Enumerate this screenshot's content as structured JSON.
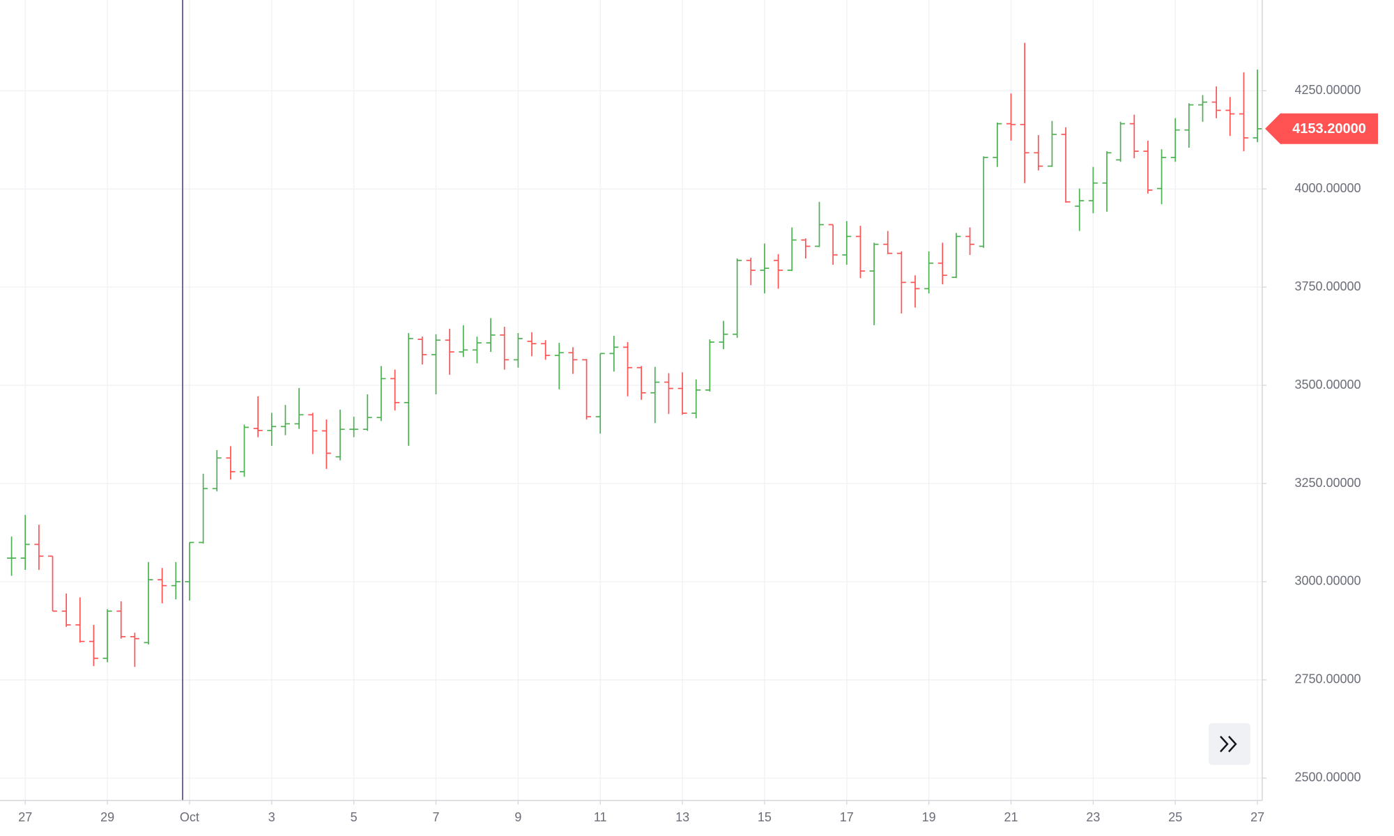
{
  "chart_data": {
    "type": "ohlc",
    "categories": [
      null,
      "27",
      null,
      null,
      null,
      null,
      null,
      "29",
      null,
      null,
      null,
      null,
      null,
      "Oct",
      null,
      null,
      null,
      null,
      null,
      "3",
      null,
      null,
      null,
      null,
      null,
      "5",
      null,
      null,
      null,
      null,
      null,
      "7",
      null,
      null,
      null,
      null,
      null,
      "9",
      null,
      null,
      null,
      null,
      null,
      "11",
      null,
      null,
      null,
      null,
      null,
      "13",
      null,
      null,
      null,
      null,
      null,
      "15",
      null,
      null,
      null,
      null,
      null,
      "17",
      null,
      null,
      null,
      null,
      null,
      "19",
      null,
      null,
      null,
      null,
      null,
      "21",
      null,
      null,
      null,
      null,
      null,
      "23",
      null,
      null,
      null,
      null,
      null,
      "25",
      null,
      null,
      null,
      null,
      null,
      "27"
    ],
    "open": [
      3060,
      3060,
      3095,
      3065,
      2925,
      2890,
      2848,
      2805,
      2925,
      2860,
      2845,
      3005,
      2990,
      3000,
      3100,
      3237,
      3315,
      3280,
      3390,
      3385,
      3395,
      3402,
      3425,
      3384,
      3318,
      3388,
      3388,
      3418,
      3517,
      3456,
      3617,
      3578,
      3615,
      3585,
      3590,
      3608,
      3628,
      3565,
      3612,
      3606,
      3576,
      3583,
      3565,
      3420,
      3581,
      3597,
      3545,
      3481,
      3508,
      3492,
      3429,
      3488,
      3610,
      3630,
      3818,
      3793,
      3818,
      3793,
      3870,
      3854,
      3909,
      3832,
      3879,
      3791,
      3859,
      3836,
      3762,
      3746,
      3811,
      3775,
      3879,
      3854,
      4080,
      4166,
      4164,
      4092,
      4058,
      4139,
      3956,
      3970,
      4015,
      4074,
      4166,
      4096,
      4001,
      4080,
      4150,
      4214,
      4221,
      4200,
      4191,
      4130
    ],
    "high": [
      3115,
      3170,
      3145,
      3065,
      2970,
      2960,
      2890,
      2930,
      2950,
      2870,
      3050,
      3035,
      3050,
      3100,
      3275,
      3335,
      3345,
      3400,
      3472,
      3430,
      3450,
      3493,
      3430,
      3413,
      3438,
      3420,
      3477,
      3549,
      3540,
      3633,
      3624,
      3630,
      3644,
      3653,
      3624,
      3671,
      3649,
      3633,
      3635,
      3615,
      3608,
      3597,
      3567,
      3581,
      3626,
      3610,
      3549,
      3547,
      3531,
      3533,
      3515,
      3617,
      3664,
      3823,
      3825,
      3861,
      3834,
      3902,
      3874,
      3967,
      3909,
      3918,
      3906,
      3863,
      3893,
      3841,
      3780,
      3841,
      3863,
      3888,
      3902,
      4083,
      4169,
      4243,
      4372,
      4137,
      4173,
      4157,
      4001,
      4056,
      4096,
      4171,
      4189,
      4123,
      4101,
      4180,
      4218,
      4239,
      4261,
      4234,
      4297,
      4304
    ],
    "low": [
      3015,
      3030,
      3030,
      2925,
      2885,
      2845,
      2785,
      2795,
      2855,
      2783,
      2840,
      2945,
      2955,
      2952,
      3097,
      3230,
      3260,
      3267,
      3368,
      3346,
      3373,
      3389,
      3325,
      3287,
      3309,
      3368,
      3384,
      3409,
      3436,
      3346,
      3553,
      3477,
      3527,
      3572,
      3556,
      3585,
      3540,
      3545,
      3574,
      3565,
      3490,
      3529,
      3413,
      3377,
      3535,
      3472,
      3463,
      3404,
      3427,
      3425,
      3416,
      3484,
      3592,
      3621,
      3755,
      3734,
      3746,
      3791,
      3823,
      3852,
      3807,
      3807,
      3773,
      3653,
      3834,
      3683,
      3698,
      3734,
      3757,
      3773,
      3832,
      3850,
      4056,
      4123,
      4015,
      4047,
      4056,
      3965,
      3893,
      3938,
      3942,
      4069,
      4078,
      3988,
      3961,
      4069,
      4105,
      4171,
      4180,
      4135,
      4096,
      4119
    ],
    "close": [
      3060,
      3095,
      3065,
      2925,
      2890,
      2848,
      2805,
      2925,
      2860,
      2855,
      3005,
      2990,
      3000,
      3100,
      3237,
      3315,
      3280,
      3393,
      3385,
      3395,
      3402,
      3425,
      3384,
      3327,
      3388,
      3388,
      3418,
      3517,
      3456,
      3619,
      3578,
      3615,
      3585,
      3590,
      3608,
      3628,
      3565,
      3619,
      3606,
      3576,
      3583,
      3565,
      3420,
      3581,
      3597,
      3545,
      3481,
      3508,
      3492,
      3429,
      3488,
      3610,
      3630,
      3818,
      3793,
      3798,
      3793,
      3870,
      3854,
      3909,
      3832,
      3879,
      3791,
      3859,
      3836,
      3762,
      3746,
      3811,
      3780,
      3879,
      3859,
      4080,
      4166,
      4164,
      4092,
      4058,
      4139,
      3967,
      3970,
      4015,
      4092,
      4166,
      4096,
      3997,
      4080,
      4150,
      4214,
      4221,
      4200,
      4191,
      4130,
      4153.2
    ],
    "up_color": "#4caf50",
    "down_color": "#ff5252",
    "ylim": [
      2443,
      4481
    ],
    "yticks": [
      {
        "value": 2500,
        "label": "2500.00000"
      },
      {
        "value": 2750,
        "label": "2750.00000"
      },
      {
        "value": 3000,
        "label": "3000.00000"
      },
      {
        "value": 3250,
        "label": "3250.00000"
      },
      {
        "value": 3500,
        "label": "3500.00000"
      },
      {
        "value": 3750,
        "label": "3750.00000"
      },
      {
        "value": 4000,
        "label": "4000.00000"
      },
      {
        "value": 4250,
        "label": "4250.00000"
      }
    ],
    "last_price": {
      "value": 4153.2,
      "label": "4153.20000"
    },
    "grid": true
  }
}
